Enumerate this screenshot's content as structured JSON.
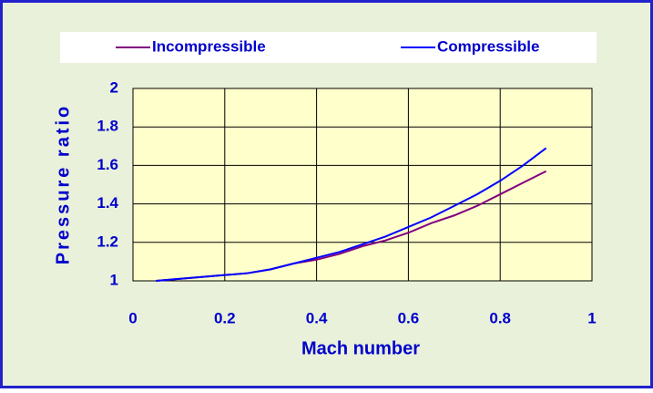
{
  "chart_data": {
    "type": "line",
    "x_label": "Mach number",
    "y_label": "Pressure ratio",
    "x": [
      0.05,
      0.1,
      0.15,
      0.2,
      0.25,
      0.3,
      0.35,
      0.4,
      0.45,
      0.5,
      0.55,
      0.6,
      0.65,
      0.7,
      0.75,
      0.8,
      0.85,
      0.9
    ],
    "series": [
      {
        "name": "Incompressible",
        "color": "#800080",
        "values": [
          1.0,
          1.01,
          1.02,
          1.03,
          1.04,
          1.06,
          1.09,
          1.11,
          1.14,
          1.18,
          1.21,
          1.25,
          1.3,
          1.34,
          1.39,
          1.45,
          1.51,
          1.57
        ]
      },
      {
        "name": "Compressible",
        "color": "#0000ff",
        "values": [
          1.0,
          1.01,
          1.02,
          1.03,
          1.04,
          1.06,
          1.09,
          1.12,
          1.15,
          1.19,
          1.23,
          1.28,
          1.33,
          1.39,
          1.45,
          1.52,
          1.6,
          1.69
        ]
      }
    ],
    "xlim": [
      0,
      1
    ],
    "xticks": [
      0,
      0.2,
      0.4,
      0.6,
      0.8,
      1
    ],
    "ylim": [
      1,
      2
    ],
    "yticks": [
      1,
      1.2,
      1.4,
      1.6,
      1.8,
      2
    ],
    "grid": true,
    "legend": "top"
  }
}
